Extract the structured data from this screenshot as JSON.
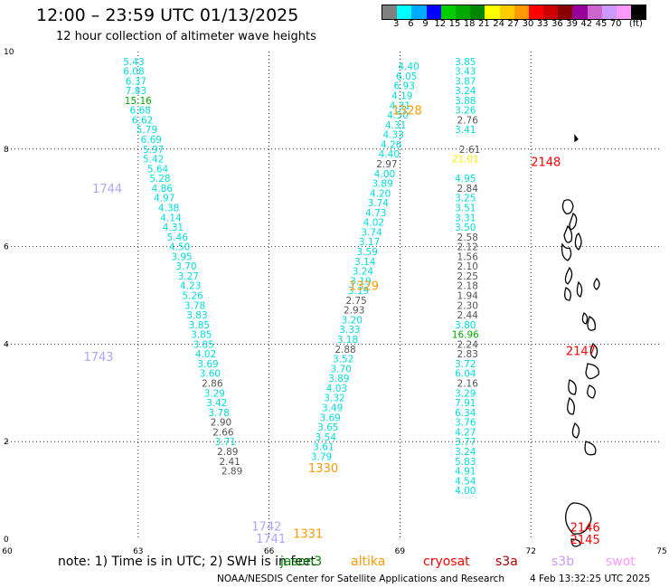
{
  "header": {
    "title": "12:00 – 23:59 UTC 01/13/2025",
    "subtitle": "12 hour collection of altimeter wave heights"
  },
  "legend": {
    "colors": [
      "#808080",
      "#00ffff",
      "#00aaff",
      "#0000ff",
      "#00cc00",
      "#00aa00",
      "#008800",
      "#ffff00",
      "#ffcc00",
      "#ff9900",
      "#ff0000",
      "#cc0000",
      "#880000",
      "#990099",
      "#cc66cc",
      "#cc99ff",
      "#ff99ff",
      "#000000"
    ],
    "labels": [
      "3",
      "6",
      "9",
      "12",
      "15",
      "18",
      "21",
      "24",
      "27",
      "30",
      "33",
      "36",
      "39",
      "42",
      "45",
      "70",
      "(ft)"
    ]
  },
  "footer": {
    "note": "note:  1) Time is in UTC; 2) SWH is in feet",
    "satellites": [
      {
        "name": "jason3",
        "color": "#008800"
      },
      {
        "name": "altika",
        "color": "#ff9900"
      },
      {
        "name": "cryosat",
        "color": "#ff0000"
      },
      {
        "name": "s3a",
        "color": "#aa0000"
      },
      {
        "name": "s3b",
        "color": "#cc99ff"
      },
      {
        "name": "swot",
        "color": "#ff99ff"
      }
    ],
    "credit": "NOAA/NESDIS Center for Satellite Applications and Research",
    "timestamp": "4 Feb 13:32:25 UTC 2025"
  },
  "chart_data": {
    "type": "scatter",
    "xlim": [
      60,
      75
    ],
    "ylim": [
      0,
      10
    ],
    "x_ticks": [
      "60",
      "63",
      "66",
      "69",
      "72",
      "75"
    ],
    "y_ticks": [
      "0",
      "2",
      "4",
      "6",
      "8",
      "10"
    ],
    "grid": true,
    "track_labels": [
      {
        "text": "1744",
        "x": 61.95,
        "y": 7.2,
        "color": "#b3a3ff"
      },
      {
        "text": "1743",
        "x": 61.75,
        "y": 3.75,
        "color": "#b3a3ff"
      },
      {
        "text": "1742",
        "x": 65.6,
        "y": 0.27,
        "color": "#b3a3ff"
      },
      {
        "text": "1741",
        "x": 65.7,
        "y": 0.02,
        "color": "#b3a3ff"
      },
      {
        "text": "1328",
        "x": 68.82,
        "y": 8.8,
        "color": "#ff9900"
      },
      {
        "text": "1329",
        "x": 67.83,
        "y": 5.2,
        "color": "#ff9900"
      },
      {
        "text": "1330",
        "x": 66.9,
        "y": 1.47,
        "color": "#ff9900"
      },
      {
        "text": "1331",
        "x": 66.55,
        "y": 0.12,
        "color": "#ff9900"
      },
      {
        "text": "2148",
        "x": 72.0,
        "y": 7.75,
        "color": "#ff0000"
      },
      {
        "text": "2147",
        "x": 72.8,
        "y": 3.87,
        "color": "#ff0000"
      },
      {
        "text": "2146",
        "x": 72.9,
        "y": 0.25,
        "color": "#ff0000"
      },
      {
        "text": "2145",
        "x": 72.9,
        "y": 0.0,
        "color": "#ff0000"
      }
    ],
    "tracks": [
      {
        "color_default": "#00dddd",
        "points": [
          {
            "v": "5.43",
            "x": 62.9,
            "y": 9.8
          },
          {
            "v": "6.08",
            "x": 62.9,
            "y": 9.6
          },
          {
            "v": "6.37",
            "x": 62.95,
            "y": 9.4
          },
          {
            "v": "7.83",
            "x": 62.95,
            "y": 9.2
          },
          {
            "v": "15.16",
            "x": 63.0,
            "y": 9.0,
            "c": "#00aa00"
          },
          {
            "v": "6.68",
            "x": 63.05,
            "y": 8.8
          },
          {
            "v": "6.62",
            "x": 63.1,
            "y": 8.6
          },
          {
            "v": "5.79",
            "x": 63.2,
            "y": 8.4
          },
          {
            "v": "6.69",
            "x": 63.3,
            "y": 8.2
          },
          {
            "v": "5.97",
            "x": 63.35,
            "y": 8.0
          },
          {
            "v": "5.42",
            "x": 63.35,
            "y": 7.8
          },
          {
            "v": "5.64",
            "x": 63.45,
            "y": 7.6
          },
          {
            "v": "5.28",
            "x": 63.5,
            "y": 7.4
          },
          {
            "v": "4.86",
            "x": 63.55,
            "y": 7.2
          },
          {
            "v": "4.97",
            "x": 63.6,
            "y": 7.0
          },
          {
            "v": "4.38",
            "x": 63.7,
            "y": 6.8
          },
          {
            "v": "4.14",
            "x": 63.75,
            "y": 6.6
          },
          {
            "v": "4.31",
            "x": 63.8,
            "y": 6.4
          },
          {
            "v": "5.46",
            "x": 63.9,
            "y": 6.2
          },
          {
            "v": "4.50",
            "x": 63.95,
            "y": 6.0
          },
          {
            "v": "3.95",
            "x": 64.0,
            "y": 5.8
          },
          {
            "v": "3.70",
            "x": 64.1,
            "y": 5.6
          },
          {
            "v": "3.27",
            "x": 64.15,
            "y": 5.4
          },
          {
            "v": "4.23",
            "x": 64.2,
            "y": 5.2
          },
          {
            "v": "5.26",
            "x": 64.25,
            "y": 5.0
          },
          {
            "v": "3.78",
            "x": 64.3,
            "y": 4.8
          },
          {
            "v": "3.83",
            "x": 64.35,
            "y": 4.6
          },
          {
            "v": "3.85",
            "x": 64.4,
            "y": 4.4
          },
          {
            "v": "3.85",
            "x": 64.45,
            "y": 4.2
          },
          {
            "v": "3.85",
            "x": 64.5,
            "y": 4.0
          },
          {
            "v": "4.02",
            "x": 64.55,
            "y": 3.8
          },
          {
            "v": "3.69",
            "x": 64.6,
            "y": 3.6
          },
          {
            "v": "3.60",
            "x": 64.65,
            "y": 3.4
          },
          {
            "v": "2.86",
            "x": 64.7,
            "y": 3.2,
            "c": "#555555"
          },
          {
            "v": "3.29",
            "x": 64.75,
            "y": 3.0
          },
          {
            "v": "3.42",
            "x": 64.8,
            "y": 2.8
          },
          {
            "v": "3.78",
            "x": 64.85,
            "y": 2.6
          },
          {
            "v": "2.90",
            "x": 64.9,
            "y": 2.4,
            "c": "#555555"
          },
          {
            "v": "2.66",
            "x": 64.95,
            "y": 2.2,
            "c": "#555555"
          },
          {
            "v": "3.71",
            "x": 65.0,
            "y": 2.0
          },
          {
            "v": "2.89",
            "x": 65.05,
            "y": 1.8,
            "c": "#555555"
          },
          {
            "v": "2.41",
            "x": 65.1,
            "y": 1.6,
            "c": "#555555"
          },
          {
            "v": "2.89",
            "x": 65.15,
            "y": 1.4,
            "c": "#555555"
          }
        ]
      },
      {
        "color_default": "#00dddd",
        "points": [
          {
            "v": "4.40",
            "x": 69.2,
            "y": 9.7
          },
          {
            "v": "6.05",
            "x": 69.15,
            "y": 9.5
          },
          {
            "v": "6.93",
            "x": 69.1,
            "y": 9.3
          },
          {
            "v": "4.19",
            "x": 69.05,
            "y": 9.1
          },
          {
            "v": "4.31",
            "x": 69.0,
            "y": 8.9
          },
          {
            "v": "4.50",
            "x": 68.95,
            "y": 8.7
          },
          {
            "v": "4.31",
            "x": 68.9,
            "y": 8.5
          },
          {
            "v": "4.33",
            "x": 68.85,
            "y": 8.3
          },
          {
            "v": "4.26",
            "x": 68.8,
            "y": 8.1
          },
          {
            "v": "4.40",
            "x": 68.75,
            "y": 7.9
          },
          {
            "v": "2.97",
            "x": 68.7,
            "y": 7.7,
            "c": "#555555"
          },
          {
            "v": "4.00",
            "x": 68.65,
            "y": 7.5
          },
          {
            "v": "3.89",
            "x": 68.6,
            "y": 7.3
          },
          {
            "v": "4.20",
            "x": 68.55,
            "y": 7.1
          },
          {
            "v": "3.74",
            "x": 68.5,
            "y": 6.9
          },
          {
            "v": "4.73",
            "x": 68.45,
            "y": 6.7
          },
          {
            "v": "4.02",
            "x": 68.4,
            "y": 6.5
          },
          {
            "v": "3.74",
            "x": 68.35,
            "y": 6.3
          },
          {
            "v": "3.17",
            "x": 68.3,
            "y": 6.1
          },
          {
            "v": "3.59",
            "x": 68.25,
            "y": 5.9
          },
          {
            "v": "3.14",
            "x": 68.2,
            "y": 5.7
          },
          {
            "v": "3.24",
            "x": 68.15,
            "y": 5.5
          },
          {
            "v": "3.19",
            "x": 68.1,
            "y": 5.3
          },
          {
            "v": "3.19",
            "x": 68.05,
            "y": 5.1
          },
          {
            "v": "2.75",
            "x": 68.0,
            "y": 4.9,
            "c": "#555555"
          },
          {
            "v": "2.93",
            "x": 67.95,
            "y": 4.7,
            "c": "#555555"
          },
          {
            "v": "3.20",
            "x": 67.9,
            "y": 4.5
          },
          {
            "v": "3.33",
            "x": 67.85,
            "y": 4.3
          },
          {
            "v": "3.18",
            "x": 67.8,
            "y": 4.1
          },
          {
            "v": "2.88",
            "x": 67.75,
            "y": 3.9,
            "c": "#555555"
          },
          {
            "v": "3.52",
            "x": 67.7,
            "y": 3.7
          },
          {
            "v": "3.70",
            "x": 67.65,
            "y": 3.5
          },
          {
            "v": "3.89",
            "x": 67.6,
            "y": 3.3
          },
          {
            "v": "4.03",
            "x": 67.55,
            "y": 3.1
          },
          {
            "v": "3.32",
            "x": 67.5,
            "y": 2.9
          },
          {
            "v": "3.49",
            "x": 67.45,
            "y": 2.7
          },
          {
            "v": "3.69",
            "x": 67.4,
            "y": 2.5
          },
          {
            "v": "3.65",
            "x": 67.35,
            "y": 2.3
          },
          {
            "v": "3.54",
            "x": 67.3,
            "y": 2.1
          },
          {
            "v": "3.61",
            "x": 67.25,
            "y": 1.9
          },
          {
            "v": "3.79",
            "x": 67.2,
            "y": 1.7
          }
        ]
      },
      {
        "color_default": "#00dddd",
        "points": [
          {
            "v": "3.85",
            "x": 70.5,
            "y": 9.8
          },
          {
            "v": "3.43",
            "x": 70.5,
            "y": 9.6
          },
          {
            "v": "3.87",
            "x": 70.5,
            "y": 9.4
          },
          {
            "v": "3.24",
            "x": 70.5,
            "y": 9.2
          },
          {
            "v": "3.88",
            "x": 70.5,
            "y": 9.0
          },
          {
            "v": "3.26",
            "x": 70.5,
            "y": 8.8
          },
          {
            "v": "2.76",
            "x": 70.55,
            "y": 8.6,
            "c": "#555555"
          },
          {
            "v": "3.41",
            "x": 70.5,
            "y": 8.4
          },
          {
            "v": "2.61",
            "x": 70.6,
            "y": 8.0,
            "c": "#555555"
          },
          {
            "v": "21.01",
            "x": 70.5,
            "y": 7.8,
            "c": "#ffee00"
          },
          {
            "v": "4.95",
            "x": 70.5,
            "y": 7.4
          },
          {
            "v": "2.84",
            "x": 70.55,
            "y": 7.2,
            "c": "#555555"
          },
          {
            "v": "3.25",
            "x": 70.5,
            "y": 7.0
          },
          {
            "v": "3.51",
            "x": 70.5,
            "y": 6.8
          },
          {
            "v": "3.31",
            "x": 70.5,
            "y": 6.6
          },
          {
            "v": "3.50",
            "x": 70.5,
            "y": 6.4
          },
          {
            "v": "2.58",
            "x": 70.55,
            "y": 6.2,
            "c": "#555555"
          },
          {
            "v": "2.12",
            "x": 70.55,
            "y": 6.0,
            "c": "#555555"
          },
          {
            "v": "1.56",
            "x": 70.55,
            "y": 5.8,
            "c": "#555555"
          },
          {
            "v": "2.10",
            "x": 70.55,
            "y": 5.6,
            "c": "#555555"
          },
          {
            "v": "2.25",
            "x": 70.55,
            "y": 5.4,
            "c": "#555555"
          },
          {
            "v": "2.18",
            "x": 70.55,
            "y": 5.2,
            "c": "#555555"
          },
          {
            "v": "1.94",
            "x": 70.55,
            "y": 5.0,
            "c": "#555555"
          },
          {
            "v": "2.30",
            "x": 70.55,
            "y": 4.8,
            "c": "#555555"
          },
          {
            "v": "2.44",
            "x": 70.55,
            "y": 4.6,
            "c": "#555555"
          },
          {
            "v": "3.80",
            "x": 70.5,
            "y": 4.4
          },
          {
            "v": "16.96",
            "x": 70.5,
            "y": 4.2,
            "c": "#00aa00"
          },
          {
            "v": "2.24",
            "x": 70.55,
            "y": 4.0,
            "c": "#555555"
          },
          {
            "v": "2.83",
            "x": 70.55,
            "y": 3.8,
            "c": "#555555"
          },
          {
            "v": "3.72",
            "x": 70.5,
            "y": 3.6
          },
          {
            "v": "6.04",
            "x": 70.5,
            "y": 3.4
          },
          {
            "v": "2.16",
            "x": 70.55,
            "y": 3.2,
            "c": "#555555"
          },
          {
            "v": "3.29",
            "x": 70.5,
            "y": 3.0
          },
          {
            "v": "7.91",
            "x": 70.5,
            "y": 2.8
          },
          {
            "v": "6.34",
            "x": 70.5,
            "y": 2.6
          },
          {
            "v": "3.76",
            "x": 70.5,
            "y": 2.4
          },
          {
            "v": "4.27",
            "x": 70.5,
            "y": 2.2
          },
          {
            "v": "3.77",
            "x": 70.5,
            "y": 2.0
          },
          {
            "v": "3.24",
            "x": 70.5,
            "y": 1.8
          },
          {
            "v": "5.83",
            "x": 70.5,
            "y": 1.6
          },
          {
            "v": "4.91",
            "x": 70.5,
            "y": 1.4
          },
          {
            "v": "4.54",
            "x": 70.5,
            "y": 1.2
          },
          {
            "v": "4.00",
            "x": 70.5,
            "y": 1.0
          }
        ]
      }
    ]
  }
}
